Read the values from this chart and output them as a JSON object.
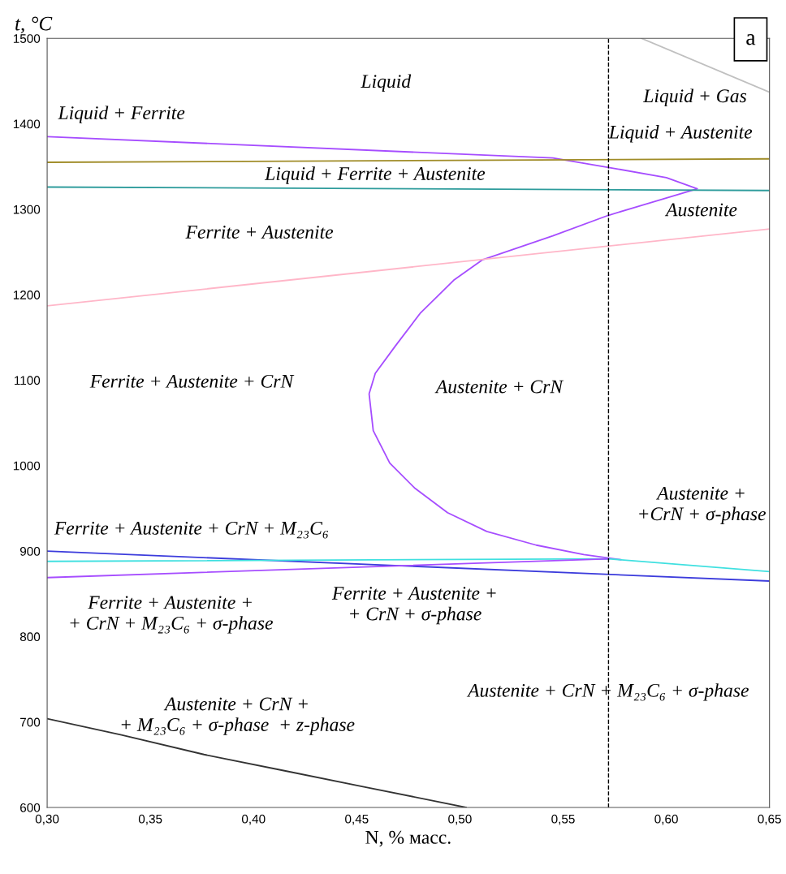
{
  "chart_data": {
    "type": "line",
    "xlabel": "N, % масс.",
    "ylabel": "t, °C",
    "xlim": [
      0.3,
      0.65
    ],
    "ylim": [
      600,
      1500
    ],
    "xticks": [
      {
        "value": 0.3,
        "label": "0,30"
      },
      {
        "value": 0.35,
        "label": "0,35"
      },
      {
        "value": 0.4,
        "label": "0,40"
      },
      {
        "value": 0.45,
        "label": "0,45"
      },
      {
        "value": 0.5,
        "label": "0,50"
      },
      {
        "value": 0.55,
        "label": "0,55"
      },
      {
        "value": 0.6,
        "label": "0,60"
      },
      {
        "value": 0.65,
        "label": "0,65"
      }
    ],
    "yticks": [
      600,
      700,
      800,
      900,
      1000,
      1100,
      1200,
      1300,
      1400,
      1500
    ],
    "grid": false,
    "legend": false,
    "marker": "none",
    "line_style": "solid",
    "series": [
      {
        "color": "#a64dff",
        "x": [
          0.3,
          0.545,
          0.572,
          0.6,
          0.615,
          0.572,
          0.545,
          0.511,
          0.497,
          0.481,
          0.469,
          0.459,
          0.456,
          0.458,
          0.466,
          0.478,
          0.494,
          0.513,
          0.537,
          0.56,
          0.578
        ],
        "values": [
          1385,
          1360,
          1349,
          1337,
          1324,
          1293,
          1269,
          1241,
          1217,
          1179,
          1141,
          1108,
          1084,
          1041,
          1003,
          974,
          945,
          923,
          907,
          896,
          890
        ]
      },
      {
        "color": "#a08c28",
        "x": [
          0.3,
          0.65
        ],
        "values": [
          1355,
          1359
        ]
      },
      {
        "color": "#2e9c9c",
        "x": [
          0.3,
          0.65
        ],
        "values": [
          1326,
          1322
        ]
      },
      {
        "color": "#ffb6c8",
        "x": [
          0.3,
          0.65
        ],
        "values": [
          1187,
          1277
        ]
      },
      {
        "color": "#3c3cdc",
        "x": [
          0.3,
          0.65
        ],
        "values": [
          900,
          865
        ]
      },
      {
        "color": "#40e0e0",
        "x": [
          0.3,
          0.572,
          0.65
        ],
        "values": [
          888,
          891,
          876
        ]
      },
      {
        "color": "#a64dff",
        "x": [
          0.3,
          0.572
        ],
        "values": [
          869,
          891
        ]
      },
      {
        "color": "#333333",
        "x": [
          0.3,
          0.336,
          0.376,
          0.415,
          0.454,
          0.503
        ],
        "values": [
          704,
          685,
          662,
          643,
          624,
          600
        ]
      },
      {
        "color": "#c0c0c0",
        "x": [
          0.588,
          0.65
        ],
        "values": [
          1500,
          1437
        ]
      }
    ],
    "ref_lines": [
      {
        "axis": "x",
        "value": 0.572,
        "color": "#000000",
        "line_style": "dashed"
      }
    ],
    "annotations": [
      "Liquid",
      "Liquid + Ferrite",
      "Liquid + Gas",
      "Liquid + Austenite",
      "Liquid + Ferrite + Austenite",
      "Austenite",
      "Ferrite + Austenite",
      "Ferrite + Austenite + CrN",
      "Austenite + CrN",
      "Austenite +\n+CrN + σ-phase",
      "Ferrite + Austenite + CrN + M₂₃C₆",
      "Ferrite + Austenite +\n+ CrN + M₂₃C₆ + σ-phase",
      "Ferrite + Austenite +\n+ CrN + σ-phase",
      "Austenite + CrN + M₂₃C₆ + σ-phase",
      "Austenite + CrN +\n+ M₂₃C₆ + σ-phase  + z-phase",
      "a"
    ]
  }
}
